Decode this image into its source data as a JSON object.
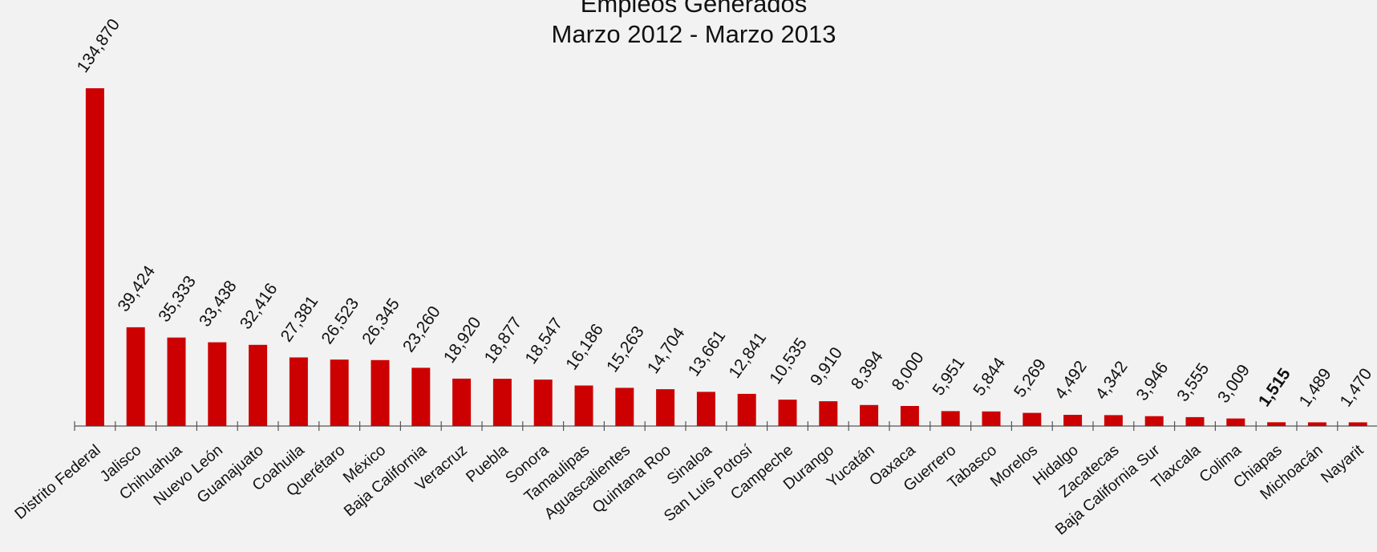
{
  "chart_data": {
    "type": "bar",
    "title": "Empleos Generados",
    "subtitle": "Marzo 2012 - Marzo 2013",
    "xlabel": "",
    "ylabel": "",
    "ylim": [
      0,
      135000
    ],
    "grid": false,
    "legend": "none",
    "bar_color": "#cc0000",
    "highlight_category": "Chiapas",
    "categories": [
      "Distrito Federal",
      "Jalisco",
      "Chihuahua",
      "Nuevo León",
      "Guanajuato",
      "Coahuila",
      "Querétaro",
      "México",
      "Baja California",
      "Veracruz",
      "Puebla",
      "Sonora",
      "Tamaulipas",
      "Aguascalientes",
      "Quintana Roo",
      "Sinaloa",
      "San Luis Potosí",
      "Campeche",
      "Durango",
      "Yucatán",
      "Oaxaca",
      "Guerrero",
      "Tabasco",
      "Morelos",
      "Hidalgo",
      "Zacatecas",
      "Baja California Sur",
      "Tlaxcala",
      "Colima",
      "Chiapas",
      "Michoacán",
      "Nayarit"
    ],
    "values": [
      134870,
      39424,
      35333,
      33438,
      32416,
      27381,
      26523,
      26345,
      23260,
      18920,
      18877,
      18547,
      16186,
      15263,
      14704,
      13661,
      12841,
      10535,
      9910,
      8394,
      8000,
      5951,
      5844,
      5269,
      4492,
      4342,
      3946,
      3555,
      3009,
      1515,
      1489,
      1470
    ],
    "value_labels": [
      "134,870",
      "39,424",
      "35,333",
      "33,438",
      "32,416",
      "27,381",
      "26,523",
      "26,345",
      "23,260",
      "18,920",
      "18,877",
      "18,547",
      "16,186",
      "15,263",
      "14,704",
      "13,661",
      "12,841",
      "10,535",
      "9,910",
      "8,394",
      "8,000",
      "5,951",
      "5,844",
      "5,269",
      "4,492",
      "4,342",
      "3,946",
      "3,555",
      "3,009",
      "1,515",
      "1,489",
      "1,470"
    ]
  }
}
